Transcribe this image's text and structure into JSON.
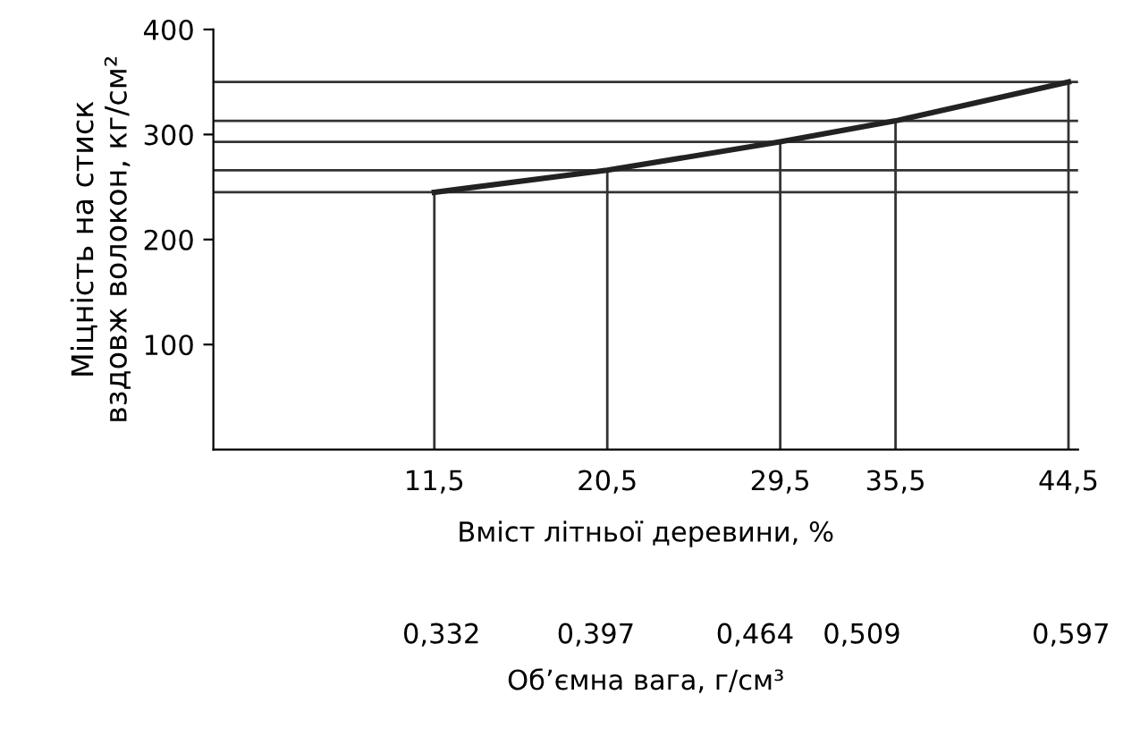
{
  "chart_data": {
    "type": "line",
    "x": [
      11.5,
      20.5,
      29.5,
      35.5,
      44.5
    ],
    "series": [
      {
        "color": "#222222",
        "values": [
          245,
          266,
          293,
          313,
          350
        ]
      }
    ],
    "xlabel": "Вміст літньої деревини, %",
    "ylabel": "Міцність на стиск\nвздовж волокон, кг/см²",
    "x2label": "Об’ємна вага, г/см³",
    "xlim": [
      0,
      45
    ],
    "ylim": [
      0,
      400
    ],
    "xticks": [
      {
        "value": 11.5,
        "label": "11,5"
      },
      {
        "value": 20.5,
        "label": "20,5"
      },
      {
        "value": 29.5,
        "label": "29,5"
      },
      {
        "value": 35.5,
        "label": "35,5"
      },
      {
        "value": 44.5,
        "label": "44,5"
      }
    ],
    "yticks": [
      100,
      200,
      300,
      400
    ],
    "x2lim": [
      0.236,
      0.6
    ],
    "x2ticks": [
      {
        "value": 0.332,
        "label": "0,332"
      },
      {
        "value": 0.397,
        "label": "0,397"
      },
      {
        "value": 0.464,
        "label": "0,464"
      },
      {
        "value": 0.509,
        "label": "0,509"
      },
      {
        "value": 0.597,
        "label": "0,597"
      }
    ],
    "ref_lines": [
      {
        "axis": "y",
        "value": 245
      },
      {
        "axis": "y",
        "value": 266
      },
      {
        "axis": "y",
        "value": 293
      },
      {
        "axis": "y",
        "value": 313
      },
      {
        "axis": "y",
        "value": 350
      },
      {
        "axis": "x",
        "value": 11.5
      },
      {
        "axis": "x",
        "value": 20.5
      },
      {
        "axis": "x",
        "value": 29.5
      },
      {
        "axis": "x",
        "value": 35.5
      },
      {
        "axis": "x",
        "value": 44.5
      }
    ],
    "grid": false,
    "marker": "none",
    "line_style": "solid"
  }
}
